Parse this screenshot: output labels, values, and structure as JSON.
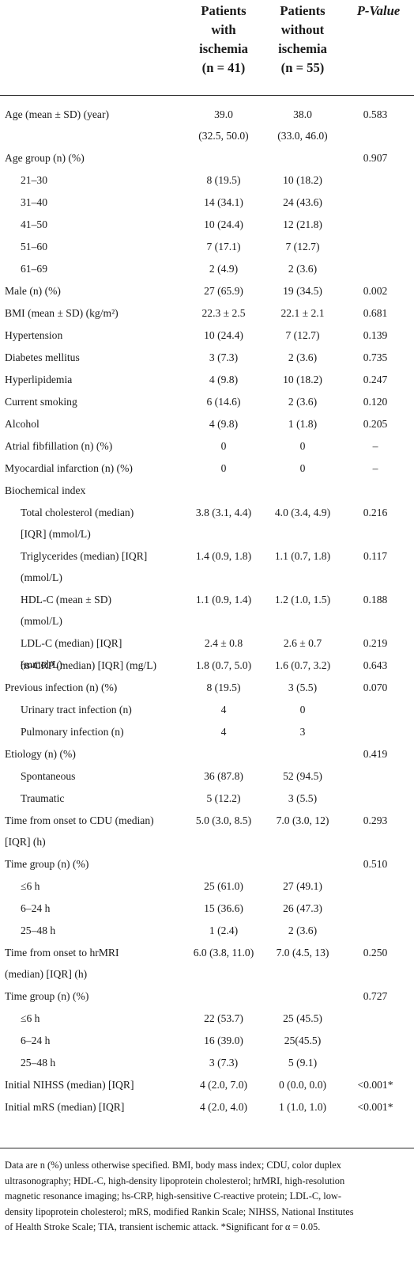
{
  "header": {
    "col1": [
      "Patients",
      "with",
      "ischemia",
      "(n = 41)"
    ],
    "col2": [
      "Patients",
      "without",
      "ischemia",
      "(n = 55)"
    ],
    "pvalue": "P-Value"
  },
  "rows": [
    {
      "label": "Age (mean ± SD) (year)",
      "label2": "",
      "v1": "39.0",
      "v1b": "(32.5, 50.0)",
      "v2": "38.0",
      "v2b": "(33.0, 46.0)",
      "p": "0.583",
      "indent": false
    },
    {
      "label": "Age group (n) (%)",
      "v1": "",
      "v2": "",
      "p": "0.907",
      "indent": false
    },
    {
      "label": "21–30",
      "v1": "8 (19.5)",
      "v2": "10 (18.2)",
      "p": "",
      "indent": true
    },
    {
      "label": "31–40",
      "v1": "14 (34.1)",
      "v2": "24 (43.6)",
      "p": "",
      "indent": true
    },
    {
      "label": "41–50",
      "v1": "10 (24.4)",
      "v2": "12 (21.8)",
      "p": "",
      "indent": true
    },
    {
      "label": "51–60",
      "v1": "7 (17.1)",
      "v2": "7 (12.7)",
      "p": "",
      "indent": true
    },
    {
      "label": "61–69",
      "v1": "2 (4.9)",
      "v2": "2 (3.6)",
      "p": "",
      "indent": true
    },
    {
      "label": "Male (n) (%)",
      "v1": "27 (65.9)",
      "v2": "19 (34.5)",
      "p": "0.002",
      "indent": false
    },
    {
      "label": "BMI (mean ± SD) (kg/m²)",
      "v1": "22.3 ± 2.5",
      "v2": "22.1 ± 2.1",
      "p": "0.681",
      "indent": false
    },
    {
      "label": "Hypertension",
      "v1": "10 (24.4)",
      "v2": "7 (12.7)",
      "p": "0.139",
      "indent": false
    },
    {
      "label": "Diabetes mellitus",
      "v1": "3 (7.3)",
      "v2": "2 (3.6)",
      "p": "0.735",
      "indent": false
    },
    {
      "label": "Hyperlipidemia",
      "v1": "4 (9.8)",
      "v2": "10 (18.2)",
      "p": "0.247",
      "indent": false
    },
    {
      "label": "Current smoking",
      "v1": "6 (14.6)",
      "v2": "2 (3.6)",
      "p": "0.120",
      "indent": false
    },
    {
      "label": "Alcohol",
      "v1": "4 (9.8)",
      "v2": "1 (1.8)",
      "p": "0.205",
      "indent": false
    },
    {
      "label": "Atrial fibfillation (n) (%)",
      "v1": "0",
      "v2": "0",
      "p": "–",
      "indent": false
    },
    {
      "label": "Myocardial infarction (n) (%)",
      "v1": "0",
      "v2": "0",
      "p": "–",
      "indent": false
    },
    {
      "label": "Biochemical index",
      "v1": "",
      "v2": "",
      "p": "",
      "indent": false
    },
    {
      "label": "Total cholesterol (median)",
      "label2": "[IQR] (mmol/L)",
      "v1": "3.8 (3.1, 4.4)",
      "v2": "4.0 (3.4, 4.9)",
      "p": "0.216",
      "indent": true
    },
    {
      "label": "Triglycerides (median) [IQR]",
      "label2": "(mmol/L)",
      "v1": "1.4 (0.9, 1.8)",
      "v2": "1.1 (0.7, 1.8)",
      "p": "0.117",
      "indent": true
    },
    {
      "label": "HDL-C (mean ± SD)",
      "label2": "(mmol/L)",
      "v1": "1.1 (0.9, 1.4)",
      "v2": "1.2 (1.0, 1.5)",
      "p": "0.188",
      "indent": true
    },
    {
      "label": "LDL-C (median) [IQR]",
      "label2": "(mmol/L)",
      "v1": "2.4 ± 0.8",
      "v2": "2.6 ± 0.7",
      "p": "0.219",
      "indent": true
    },
    {
      "label": "hs-CRP (median) [IQR] (mg/L)",
      "v1": "1.8 (0.7, 5.0)",
      "v2": "1.6 (0.7, 3.2)",
      "p": "0.643",
      "indent": true
    },
    {
      "label": "Previous infection (n) (%)",
      "v1": "8 (19.5)",
      "v2": "3 (5.5)",
      "p": "0.070",
      "indent": false
    },
    {
      "label": "Urinary tract infection (n)",
      "v1": "4",
      "v2": "0",
      "p": "",
      "indent": true
    },
    {
      "label": "Pulmonary infection (n)",
      "v1": "4",
      "v2": "3",
      "p": "",
      "indent": true
    },
    {
      "label": "Etiology (n) (%)",
      "v1": "",
      "v2": "",
      "p": "0.419",
      "indent": false
    },
    {
      "label": "Spontaneous",
      "v1": "36 (87.8)",
      "v2": "52 (94.5)",
      "p": "",
      "indent": true
    },
    {
      "label": "Traumatic",
      "v1": "5 (12.2)",
      "v2": "3 (5.5)",
      "p": "",
      "indent": true
    },
    {
      "label": "Time from onset to CDU (median)",
      "label2": "[IQR] (h)",
      "v1": "5.0 (3.0, 8.5)",
      "v2": "7.0 (3.0, 12)",
      "p": "0.293",
      "indent": false
    },
    {
      "label": "Time group (n) (%)",
      "v1": "",
      "v2": "",
      "p": "0.510",
      "indent": false
    },
    {
      "label": "≤6 h",
      "v1": "25 (61.0)",
      "v2": "27 (49.1)",
      "p": "",
      "indent": true
    },
    {
      "label": "6–24 h",
      "v1": "15 (36.6)",
      "v2": "26 (47.3)",
      "p": "",
      "indent": true
    },
    {
      "label": "25–48 h",
      "v1": "1 (2.4)",
      "v2": "2 (3.6)",
      "p": "",
      "indent": true
    },
    {
      "label": "Time from onset to hrMRI",
      "label2": "(median) [IQR] (h)",
      "v1": "6.0 (3.8, 11.0)",
      "v2": "7.0 (4.5, 13)",
      "p": "0.250",
      "indent": false
    },
    {
      "label": "Time group (n) (%)",
      "v1": "",
      "v2": "",
      "p": "0.727",
      "indent": false
    },
    {
      "label": "≤6 h",
      "v1": "22 (53.7)",
      "v2": "25 (45.5)",
      "p": "",
      "indent": true
    },
    {
      "label": "6–24 h",
      "v1": "16 (39.0)",
      "v2": "25(45.5)",
      "p": "",
      "indent": true
    },
    {
      "label": "25–48 h",
      "v1": "3 (7.3)",
      "v2": "5 (9.1)",
      "p": "",
      "indent": true
    },
    {
      "label": "Initial NIHSS (median) [IQR]",
      "v1": "4 (2.0, 7.0)",
      "v2": "0 (0.0, 0.0)",
      "p": "<0.001*",
      "indent": false
    },
    {
      "label": "Initial mRS (median) [IQR]",
      "v1": "4 (2.0, 4.0)",
      "v2": "1 (1.0, 1.0)",
      "p": "<0.001*",
      "indent": false
    }
  ],
  "footnote": [
    "Data are n (%) unless otherwise specified. BMI, body mass index; CDU, color duplex",
    "ultrasonography; HDL-C, high-density lipoprotein cholesterol; hrMRI, high-resolution",
    "magnetic resonance imaging; hs-CRP, high-sensitive C-reactive protein; LDL-C, low-",
    "density lipoprotein cholesterol; mRS, modified Rankin Scale; NIHSS, National Institutes",
    "of Health Stroke Scale; TIA, transient ischemic attack. *Significant for α = 0.05."
  ]
}
